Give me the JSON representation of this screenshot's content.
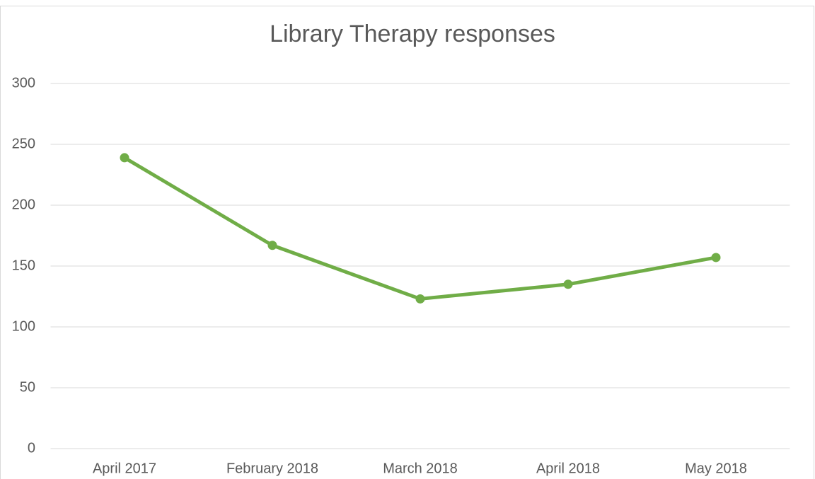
{
  "chart_data": {
    "type": "line",
    "title": "Library Therapy responses",
    "categories": [
      "April 2017",
      "February 2018",
      "March 2018",
      "April 2018",
      "May 2018"
    ],
    "series": [
      {
        "name": "Library Therapy responses",
        "color": "#70ad47",
        "values": [
          239,
          167,
          123,
          135,
          157
        ]
      }
    ],
    "ylim": [
      0,
      300
    ],
    "yticks": [
      0,
      50,
      100,
      150,
      200,
      250,
      300
    ],
    "grid": true
  }
}
